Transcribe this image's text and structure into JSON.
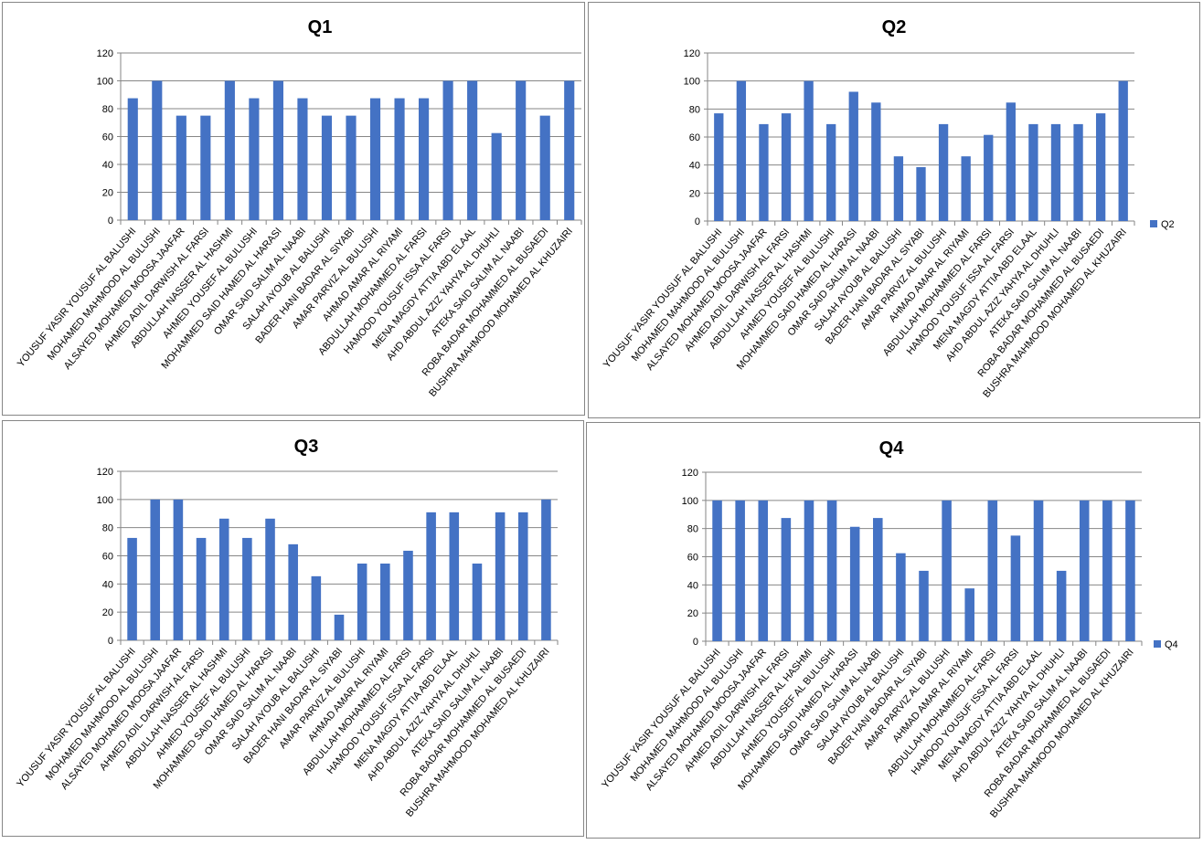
{
  "students": [
    "YOUSUF YASIR YOUSUF AL BALUSHI",
    "MOHAMED MAHMOOD AL BULUSHI",
    "ALSAYED MOHAMED  MOOSA JAAFAR",
    "AHMED ADIL DARWISH  AL FARSI",
    "ABDULLAH NASSER AL HASHMI",
    "AHMED YOUSEF  AL BULUSHI",
    "MOHAMMED SAID HAMED AL HARASI",
    "OMAR SAID SALIM AL NAABI",
    "SALAH AYOUB  AL BALUSHI",
    "BADER HANI BADAR AL SIYABI",
    "AMAR PARVIZ  AL BULUSHI",
    "AHMAD AMAR  AL RIYAMI",
    "ABDULLAH MOHAMMED AL FARSI",
    "HAMOOD YOUSUF ISSA AL FARSI",
    "MENA MAGDY ATTIA ABD ELAAL",
    "AHD ABDUL AZIZ  YAHYA  AL DHUHLI",
    "ATEKA SAID SALIM AL NAABI",
    "ROBA BADAR MOHAMMED  AL BUSAEDI",
    "BUSHRA MAHMOOD MOHAMED AL KHUZAIRI"
  ],
  "colors": {
    "bar": "#4472C4",
    "grid": "#868686"
  },
  "chart_data": [
    {
      "type": "bar",
      "title": "Q1",
      "legend": null,
      "ylim": [
        0,
        120
      ],
      "yticks": [
        "0",
        "20",
        "40",
        "60",
        "80",
        "100",
        "120"
      ],
      "grid": true,
      "values": [
        87.5,
        100,
        75,
        75,
        100,
        87.5,
        100,
        87.5,
        75,
        75,
        87.5,
        87.5,
        87.5,
        100,
        100,
        62.5,
        100,
        75,
        100
      ]
    },
    {
      "type": "bar",
      "title": "Q2",
      "legend": "Q2",
      "legend_position": "right",
      "ylim": [
        0,
        120
      ],
      "yticks": [
        "0",
        "20",
        "40",
        "60",
        "80",
        "100",
        "120"
      ],
      "grid": true,
      "values": [
        76.9,
        100,
        69.2,
        76.9,
        100,
        69.2,
        92.3,
        84.6,
        46.2,
        38.5,
        69.2,
        46.2,
        61.5,
        84.6,
        69.2,
        69.2,
        69.2,
        76.9,
        100
      ]
    },
    {
      "type": "bar",
      "title": "Q3",
      "legend": null,
      "ylim": [
        0,
        120
      ],
      "yticks": [
        "0",
        "20",
        "40",
        "60",
        "80",
        "100",
        "120"
      ],
      "grid": true,
      "values": [
        72.7,
        100,
        100,
        72.7,
        86.4,
        72.7,
        86.4,
        68.2,
        45.5,
        18.2,
        54.5,
        54.5,
        63.6,
        90.9,
        90.9,
        54.5,
        90.9,
        90.9,
        100
      ]
    },
    {
      "type": "bar",
      "title": "Q4",
      "legend": "Q4",
      "legend_position": "right",
      "ylim": [
        0,
        120
      ],
      "yticks": [
        "0",
        "20",
        "40",
        "60",
        "80",
        "100",
        "120"
      ],
      "grid": true,
      "values": [
        100,
        100,
        100,
        87.5,
        100,
        100,
        81.25,
        87.5,
        62.5,
        50,
        100,
        37.5,
        100,
        75,
        100,
        50,
        100,
        100,
        100
      ]
    }
  ]
}
